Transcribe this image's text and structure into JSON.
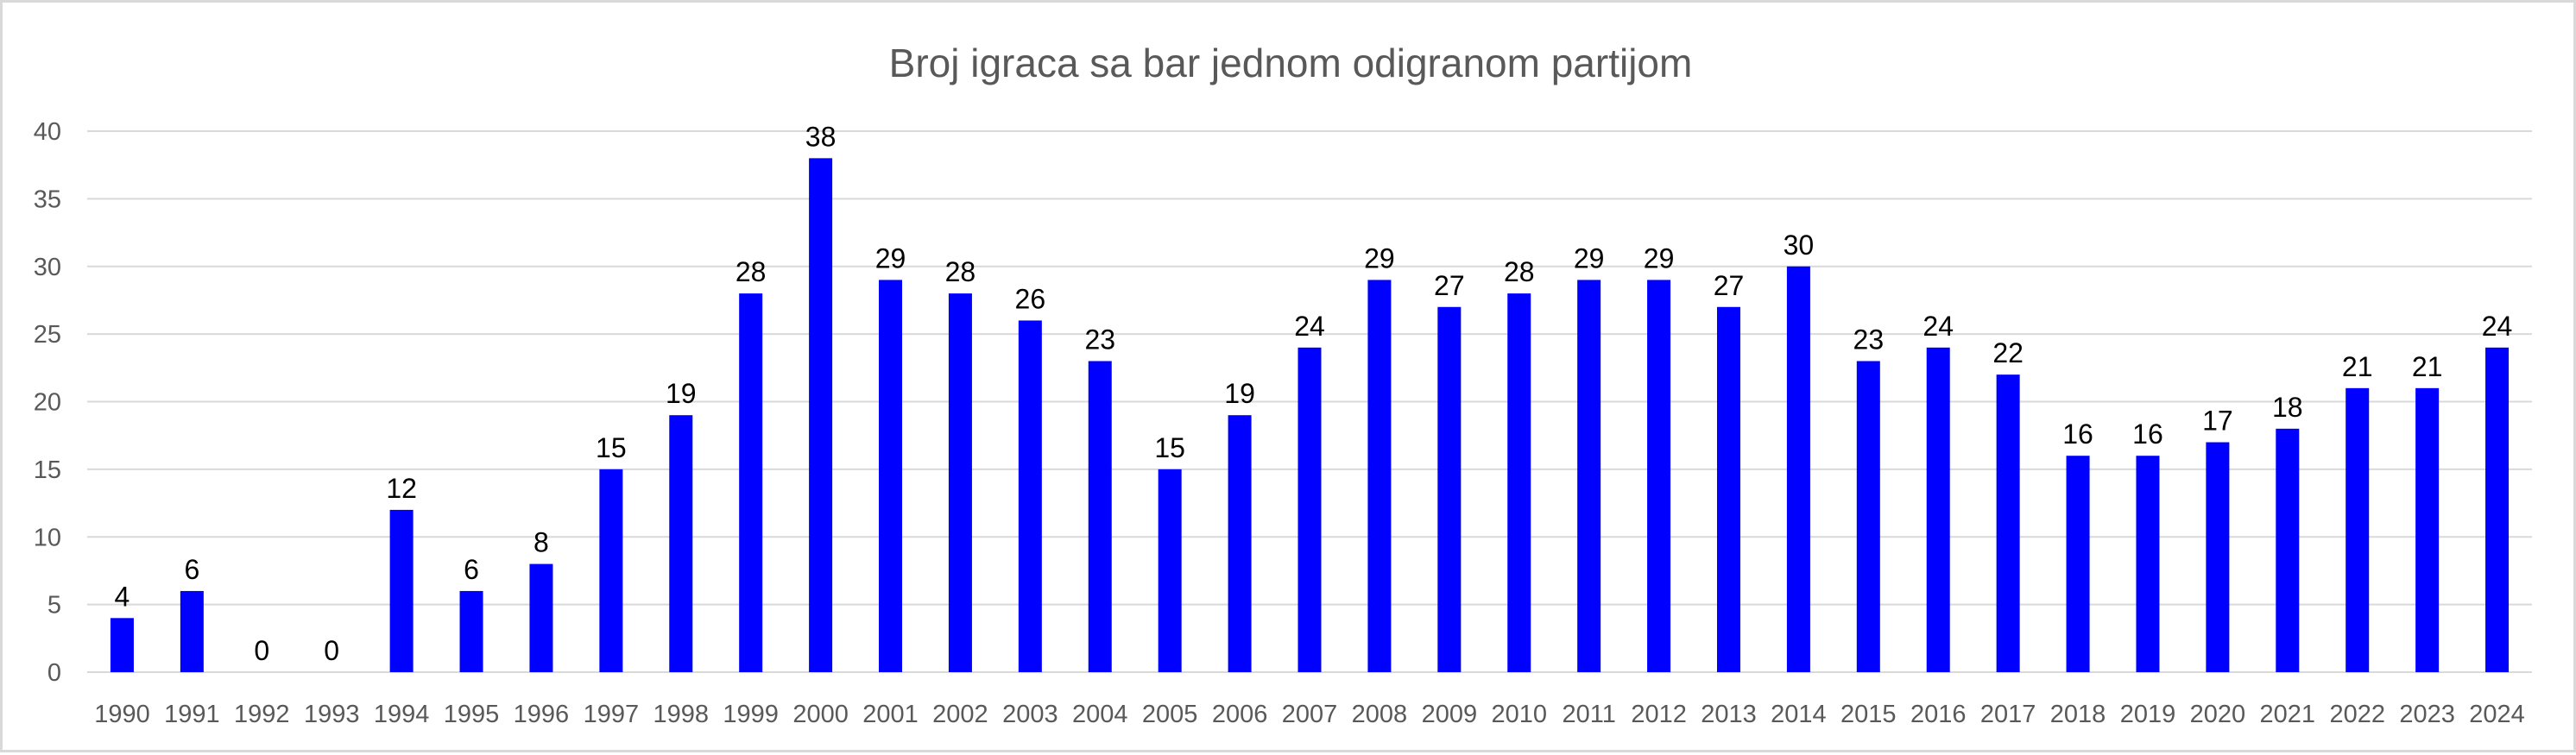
{
  "chart_data": {
    "type": "bar",
    "title": "Broj igraca sa bar jednom odigranom partijom",
    "xlabel": "",
    "ylabel": "",
    "categories": [
      "1990",
      "1991",
      "1992",
      "1993",
      "1994",
      "1995",
      "1996",
      "1997",
      "1998",
      "1999",
      "2000",
      "2001",
      "2002",
      "2003",
      "2004",
      "2005",
      "2006",
      "2007",
      "2008",
      "2009",
      "2010",
      "2011",
      "2012",
      "2013",
      "2014",
      "2015",
      "2016",
      "2017",
      "2018",
      "2019",
      "2020",
      "2021",
      "2022",
      "2023",
      "2024"
    ],
    "values": [
      4,
      6,
      0,
      0,
      12,
      6,
      8,
      15,
      19,
      28,
      38,
      29,
      28,
      26,
      23,
      15,
      19,
      24,
      29,
      27,
      28,
      29,
      29,
      27,
      30,
      23,
      24,
      22,
      16,
      16,
      17,
      18,
      21,
      21,
      24
    ],
    "ylim": [
      0,
      40
    ],
    "yticks": [
      "0",
      "5",
      "10",
      "15",
      "20",
      "25",
      "30",
      "35",
      "40"
    ],
    "grid": true,
    "legend": "none",
    "data_labels": true,
    "colors": {
      "bar": "#0000ff",
      "grid": "#d9d9d9",
      "axis_text": "#595959",
      "label_text": "#000000"
    }
  }
}
